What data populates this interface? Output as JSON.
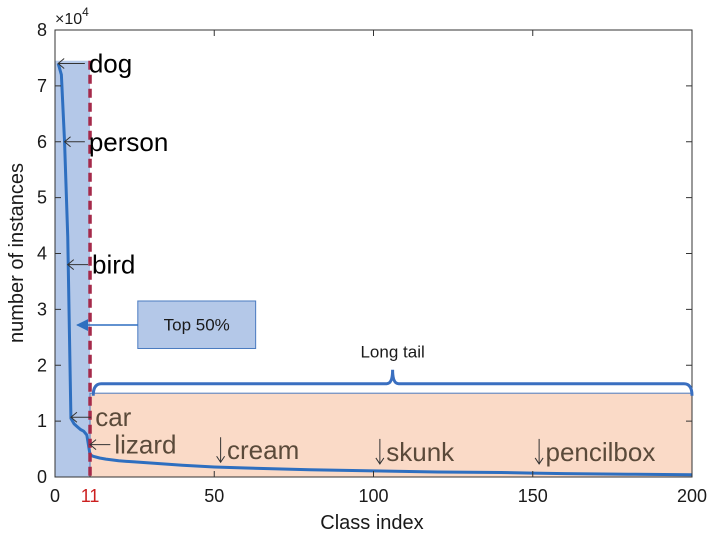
{
  "chart_data": {
    "type": "line",
    "xlabel": "Class index",
    "ylabel": "number of instances",
    "y_multiplier_label": "×10",
    "y_multiplier_exp": "4",
    "xlim": [
      0,
      200
    ],
    "ylim": [
      0,
      8
    ],
    "x_unit_scale": 10000,
    "xticks": [
      0,
      50,
      100,
      150,
      200
    ],
    "yticks": [
      0,
      1,
      2,
      3,
      4,
      5,
      6,
      7,
      8
    ],
    "highlight_tick": {
      "value": 11,
      "label": "11",
      "color": "#cc1f1f"
    },
    "grid": false,
    "series": [
      {
        "color": "#2e6fc0",
        "x": [
          1,
          2,
          3,
          4,
          5,
          6,
          7,
          8,
          9,
          10,
          11,
          12,
          14,
          16,
          20,
          25,
          30,
          40,
          50,
          60,
          80,
          100,
          120,
          140,
          150,
          160,
          180,
          200
        ],
        "y": [
          7.4,
          7.2,
          6.0,
          4.3,
          1.05,
          0.95,
          0.9,
          0.85,
          0.82,
          0.75,
          0.4,
          0.37,
          0.34,
          0.32,
          0.29,
          0.27,
          0.25,
          0.21,
          0.18,
          0.16,
          0.13,
          0.11,
          0.09,
          0.08,
          0.07,
          0.06,
          0.05,
          0.04
        ]
      }
    ],
    "regions": {
      "head": {
        "x": [
          0,
          11
        ],
        "y": [
          0,
          7.45
        ],
        "color": "#b4c8e8"
      },
      "tail": {
        "x": [
          11,
          200
        ],
        "y": [
          0,
          1.5
        ],
        "color": "#fadac7"
      }
    },
    "threshold_x": 11,
    "threshold_color": "#a52a4a",
    "annotations": [
      {
        "text": "dog",
        "x": 10,
        "y": 7.4,
        "arrow_to": [
          1,
          7.4
        ],
        "color": "#000000"
      },
      {
        "text": "person",
        "x": 10,
        "y": 6.0,
        "arrow_to": [
          3,
          6.0
        ],
        "color": "#000000"
      },
      {
        "text": "bird",
        "x": 11,
        "y": 3.8,
        "arrow_to": [
          4,
          3.8
        ],
        "color": "#000000"
      },
      {
        "text": "car",
        "x": 12,
        "y": 1.07,
        "arrow_to": [
          5,
          1.07
        ],
        "color": "#5a4a3a"
      },
      {
        "text": "lizard",
        "x": 18,
        "y": 0.58,
        "arrow_to": [
          11,
          0.58
        ],
        "color": "#5a4a3a"
      },
      {
        "text": "cream",
        "x": 54,
        "y": 0.3,
        "arrow_down_at": 52,
        "color": "#5a4a3a"
      },
      {
        "text": "skunk",
        "x": 104,
        "y": 0.27,
        "arrow_down_at": 102,
        "color": "#5a4a3a"
      },
      {
        "text": "pencilbox",
        "x": 154,
        "y": 0.27,
        "arrow_down_at": 152,
        "color": "#5a4a3a"
      }
    ],
    "top_box": {
      "label": "Top 50%",
      "x": [
        26,
        63
      ],
      "y": [
        2.3,
        3.15
      ],
      "arrow_to": [
        7,
        2.72
      ],
      "color": "#b4c8e8"
    },
    "long_tail": {
      "label": "Long tail",
      "x": [
        12,
        200
      ],
      "y": 1.67,
      "peak_x": 106
    }
  }
}
